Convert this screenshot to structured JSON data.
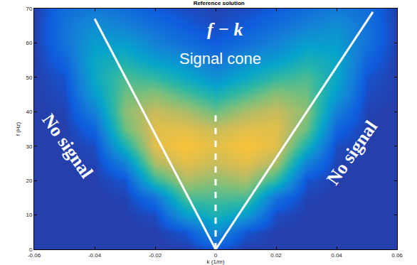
{
  "chart_data": {
    "type": "heatmap",
    "title": "Reference solution",
    "x_label": "k (1/m)",
    "y_label": "f (Hz)",
    "x": [
      -0.06,
      -0.05,
      -0.04,
      -0.03,
      -0.02,
      -0.01,
      0,
      0.01,
      0.02,
      0.03,
      0.04,
      0.05,
      0.06
    ],
    "y": [
      0,
      5,
      10,
      15,
      20,
      25,
      30,
      35,
      40,
      45,
      50,
      55,
      60,
      65,
      70
    ],
    "z": [
      [
        0.05,
        0.05,
        0.05,
        0.05,
        0.05,
        0.05,
        0.1,
        0.05,
        0.05,
        0.05,
        0.05,
        0.05,
        0.05
      ],
      [
        0.05,
        0.05,
        0.05,
        0.05,
        0.05,
        0.1,
        0.3,
        0.1,
        0.05,
        0.05,
        0.05,
        0.05,
        0.05
      ],
      [
        0.05,
        0.05,
        0.05,
        0.05,
        0.08,
        0.35,
        0.45,
        0.35,
        0.08,
        0.05,
        0.05,
        0.05,
        0.05
      ],
      [
        0.05,
        0.05,
        0.05,
        0.06,
        0.2,
        0.55,
        0.55,
        0.55,
        0.2,
        0.06,
        0.05,
        0.05,
        0.05
      ],
      [
        0.05,
        0.05,
        0.05,
        0.1,
        0.5,
        0.7,
        0.65,
        0.7,
        0.5,
        0.1,
        0.05,
        0.05,
        0.05
      ],
      [
        0.05,
        0.05,
        0.06,
        0.25,
        0.7,
        0.8,
        0.75,
        0.8,
        0.7,
        0.25,
        0.06,
        0.05,
        0.05
      ],
      [
        0.05,
        0.05,
        0.08,
        0.45,
        0.8,
        0.85,
        0.8,
        0.85,
        0.8,
        0.45,
        0.08,
        0.05,
        0.05
      ],
      [
        0.05,
        0.05,
        0.15,
        0.6,
        0.8,
        0.8,
        0.75,
        0.8,
        0.8,
        0.6,
        0.15,
        0.05,
        0.05
      ],
      [
        0.05,
        0.06,
        0.25,
        0.65,
        0.75,
        0.7,
        0.6,
        0.7,
        0.75,
        0.65,
        0.25,
        0.06,
        0.05
      ],
      [
        0.05,
        0.08,
        0.35,
        0.6,
        0.65,
        0.55,
        0.45,
        0.55,
        0.65,
        0.6,
        0.35,
        0.08,
        0.05
      ],
      [
        0.05,
        0.1,
        0.4,
        0.55,
        0.5,
        0.4,
        0.3,
        0.4,
        0.5,
        0.55,
        0.4,
        0.1,
        0.05
      ],
      [
        0.05,
        0.15,
        0.4,
        0.45,
        0.35,
        0.3,
        0.2,
        0.3,
        0.35,
        0.45,
        0.4,
        0.15,
        0.05
      ],
      [
        0.05,
        0.2,
        0.35,
        0.35,
        0.25,
        0.18,
        0.12,
        0.18,
        0.25,
        0.35,
        0.35,
        0.2,
        0.05
      ],
      [
        0.05,
        0.2,
        0.3,
        0.25,
        0.18,
        0.12,
        0.08,
        0.12,
        0.18,
        0.25,
        0.3,
        0.2,
        0.05
      ],
      [
        0.05,
        0.18,
        0.22,
        0.18,
        0.12,
        0.08,
        0.06,
        0.08,
        0.12,
        0.18,
        0.22,
        0.18,
        0.05
      ]
    ],
    "zlim": [
      0,
      1
    ],
    "xlim": [
      -0.06,
      0.06
    ],
    "ylim": [
      0,
      70
    ],
    "xticks": [
      -0.06,
      -0.04,
      -0.02,
      0,
      0.02,
      0.04,
      0.06
    ],
    "yticks": [
      0,
      10,
      20,
      30,
      40,
      50,
      60,
      70
    ],
    "tick_labels": true,
    "grid": false,
    "annotations": [
      {
        "text": "f − k",
        "x": 0.003,
        "y": 64
      },
      {
        "text": "Signal cone",
        "x": 0.0016,
        "y": 55.5
      },
      {
        "text": "No signal",
        "x": -0.049,
        "y": 30
      },
      {
        "text": "No signal",
        "x": 0.045,
        "y": 28
      }
    ],
    "lines": [
      {
        "x": [
          -0.04,
          0
        ],
        "y": [
          67,
          0
        ],
        "line_style": "solid",
        "color": "#ffffff"
      },
      {
        "x": [
          0,
          0.052
        ],
        "y": [
          0,
          69
        ],
        "line_style": "solid",
        "color": "#ffffff"
      },
      {
        "x": [
          0,
          0
        ],
        "y": [
          0,
          39
        ],
        "line_style": "dash",
        "color": "#ffffff"
      }
    ]
  }
}
